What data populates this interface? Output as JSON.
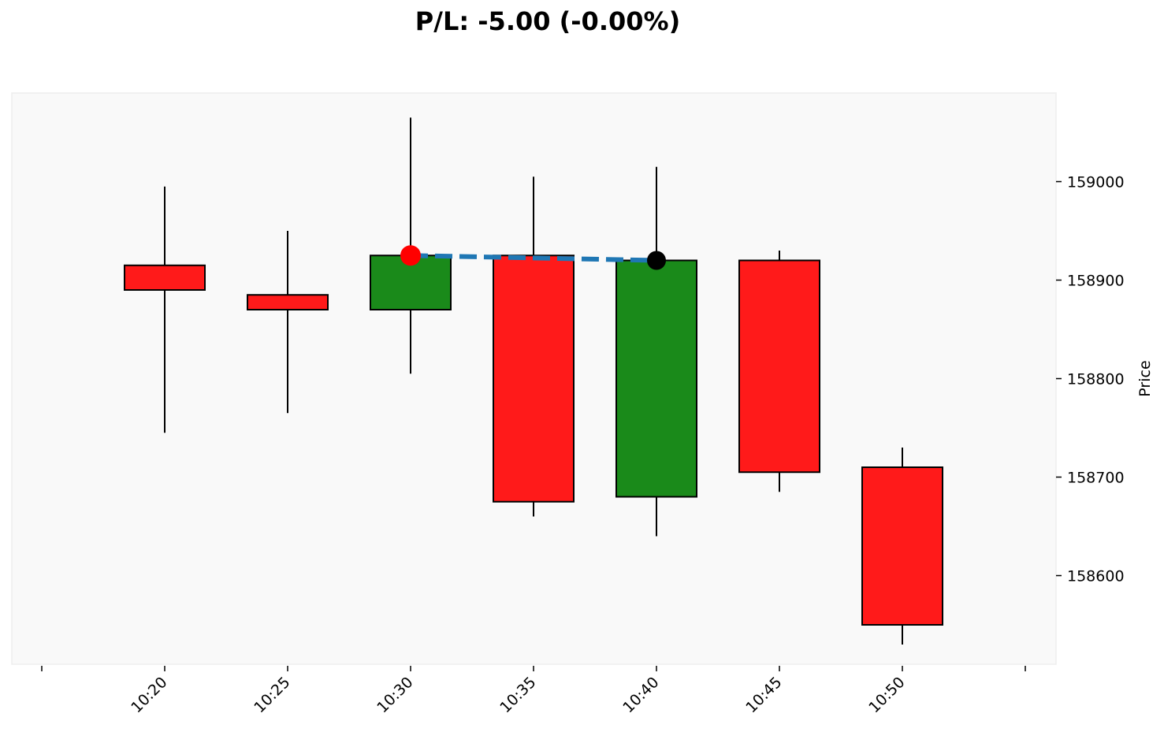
{
  "chart_data": {
    "type": "candlestick",
    "title": "P/L: -5.00 (-0.00%)",
    "ylabel": "Price",
    "xlabel": "",
    "x_tick_labels": [
      "10:20",
      "10:25",
      "10:30",
      "10:35",
      "10:40",
      "10:45",
      "10:50"
    ],
    "y_ticks": [
      158600,
      158700,
      158800,
      158900,
      159000
    ],
    "ylim": [
      158510,
      159090
    ],
    "grid": false,
    "y_axis_side": "right",
    "colors": {
      "up": "#1a8a1a",
      "down": "#ff1a1a",
      "background": "#f9f9f9",
      "trade_line": "#1f77b4",
      "entry_marker": "#ff0000",
      "exit_marker": "#000000"
    },
    "candles": [
      {
        "time": "10:20",
        "open": 158915,
        "high": 158995,
        "low": 158745,
        "close": 158890
      },
      {
        "time": "10:25",
        "open": 158885,
        "high": 158950,
        "low": 158765,
        "close": 158870
      },
      {
        "time": "10:30",
        "open": 158870,
        "high": 159065,
        "low": 158805,
        "close": 158925
      },
      {
        "time": "10:35",
        "open": 158925,
        "high": 159005,
        "low": 158660,
        "close": 158675
      },
      {
        "time": "10:40",
        "open": 158680,
        "high": 159015,
        "low": 158640,
        "close": 158920
      },
      {
        "time": "10:45",
        "open": 158920,
        "high": 158930,
        "low": 158685,
        "close": 158705
      },
      {
        "time": "10:50",
        "open": 158710,
        "high": 158730,
        "low": 158530,
        "close": 158550
      }
    ],
    "trade": {
      "entry": {
        "time": "10:30",
        "price": 158925
      },
      "exit": {
        "time": "10:40",
        "price": 158920
      }
    }
  }
}
